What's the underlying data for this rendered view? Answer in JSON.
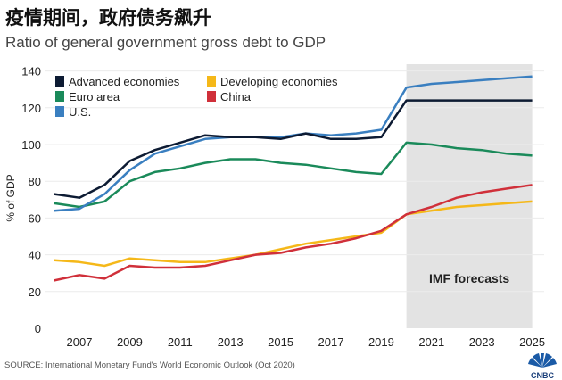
{
  "title": "疫情期间，政府债务飙升",
  "subtitle": "Ratio of general government gross debt to GDP",
  "source": "SOURCE: International Monetary Fund's World Economic Outlook (Oct 2020)",
  "logo": "CNBC",
  "chart_data": {
    "type": "line",
    "ylabel": "% of GDP",
    "ylim": [
      0,
      140
    ],
    "yticks": [
      0,
      20,
      40,
      60,
      80,
      100,
      120,
      140
    ],
    "xticks": [
      2007,
      2009,
      2011,
      2013,
      2015,
      2017,
      2019,
      2021,
      2023,
      2025
    ],
    "grid": true,
    "legend": "top-left",
    "annotation": {
      "text": "IMF forecasts",
      "range": [
        2020,
        2025
      ],
      "color": "#e3e3e3"
    },
    "x": [
      2006,
      2007,
      2008,
      2009,
      2010,
      2011,
      2012,
      2013,
      2014,
      2015,
      2016,
      2017,
      2018,
      2019,
      2020,
      2021,
      2022,
      2023,
      2024,
      2025
    ],
    "series": [
      {
        "name": "Advanced economies",
        "color": "#0d1b33",
        "values": [
          73,
          71,
          78,
          91,
          97,
          101,
          105,
          104,
          104,
          103,
          106,
          103,
          103,
          104,
          124,
          124,
          124,
          124,
          124,
          124
        ]
      },
      {
        "name": "Euro area",
        "color": "#1a8a5a",
        "values": [
          68,
          66,
          69,
          80,
          85,
          87,
          90,
          92,
          92,
          90,
          89,
          87,
          85,
          84,
          101,
          100,
          98,
          97,
          95,
          94
        ]
      },
      {
        "name": "U.S.",
        "color": "#3a7fc0",
        "values": [
          64,
          65,
          73,
          86,
          95,
          99,
          103,
          104,
          104,
          104,
          106,
          105,
          106,
          108,
          131,
          133,
          134,
          135,
          136,
          137
        ]
      },
      {
        "name": "Developing economies",
        "color": "#f5b819",
        "values": [
          37,
          36,
          34,
          38,
          37,
          36,
          36,
          38,
          40,
          43,
          46,
          48,
          50,
          52,
          62,
          64,
          66,
          67,
          68,
          69
        ]
      },
      {
        "name": "China",
        "color": "#d0303a",
        "values": [
          26,
          29,
          27,
          34,
          33,
          33,
          34,
          37,
          40,
          41,
          44,
          46,
          49,
          53,
          62,
          66,
          71,
          74,
          76,
          78
        ]
      }
    ]
  }
}
